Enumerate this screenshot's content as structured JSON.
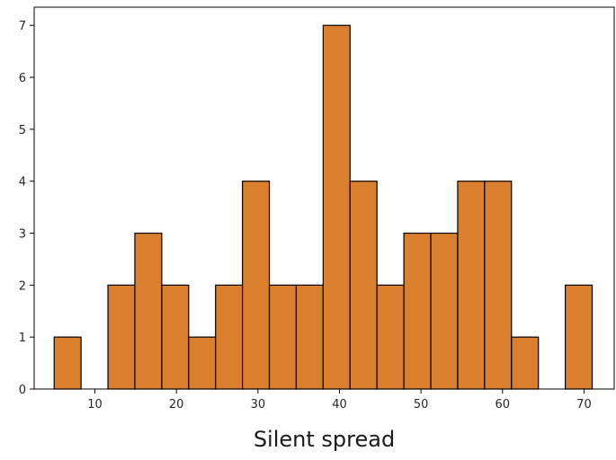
{
  "chart_data": {
    "type": "bar",
    "subtype": "histogram",
    "title": "",
    "xlabel": "Silent spread",
    "ylabel": "",
    "bar_color": "#d97f2e",
    "edge_color": "#000000",
    "xlim": [
      2.55,
      73.7
    ],
    "ylim": [
      0,
      7.35
    ],
    "x_ticks": [
      10,
      20,
      30,
      40,
      50,
      60,
      70
    ],
    "y_ticks": [
      0,
      1,
      2,
      3,
      4,
      5,
      6,
      7
    ],
    "bin_start": 5.0,
    "bin_width": 3.3,
    "counts": [
      1,
      0,
      2,
      3,
      2,
      1,
      2,
      4,
      2,
      2,
      7,
      4,
      2,
      3,
      3,
      4,
      4,
      1,
      0,
      2
    ],
    "grid": false,
    "legend": "none"
  }
}
